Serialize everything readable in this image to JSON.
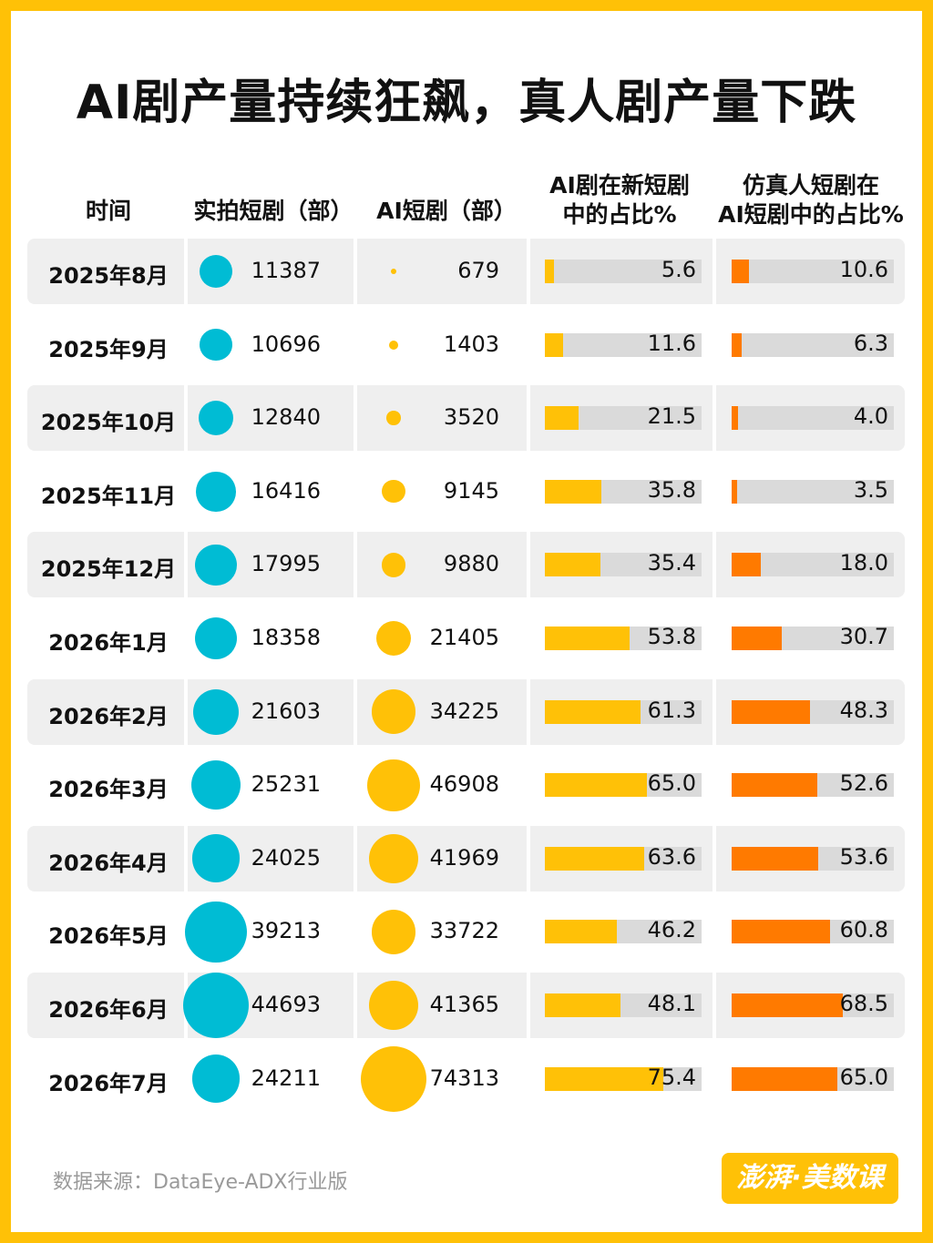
{
  "title": "AI剧产量持续狂飙，真人剧产量下跌",
  "headers": {
    "time": "时间",
    "real": "实拍短剧（部）",
    "ai": "AI短剧（部）",
    "ai_share_line1": "AI剧在新短剧",
    "ai_share_line2": "中的占比%",
    "sim_share_line1": "仿真人短剧在",
    "sim_share_line2": "AI短剧中的占比%"
  },
  "colors": {
    "real_dot": "#00BCD4",
    "ai_dot": "#FFC107",
    "ai_share_bar": "#FFC107",
    "sim_share_bar": "#FF7A00",
    "bar_track": "#DADADA",
    "row_alt": "#EFEFEF",
    "border": "#FFC107"
  },
  "chart_data": {
    "type": "table",
    "categories": [
      "2025年8月",
      "2025年9月",
      "2025年10月",
      "2025年11月",
      "2025年12月",
      "2026年1月",
      "2026年2月",
      "2026年3月",
      "2026年4月",
      "2026年5月",
      "2026年6月",
      "2026年7月"
    ],
    "series": [
      {
        "name": "实拍短剧（部）",
        "values": [
          11387,
          10696,
          12840,
          16416,
          17995,
          18358,
          21603,
          25231,
          24025,
          39213,
          44693,
          24211
        ]
      },
      {
        "name": "AI短剧（部）",
        "values": [
          679,
          1403,
          3520,
          9145,
          9880,
          21405,
          34225,
          46908,
          41969,
          33722,
          41365,
          74313
        ]
      },
      {
        "name": "AI剧在新短剧中的占比%",
        "values": [
          "5.6",
          "11.6",
          "21.5",
          "35.8",
          "35.4",
          "53.8",
          "61.3",
          "65.0",
          "63.6",
          "46.2",
          "48.1",
          "75.4"
        ]
      },
      {
        "name": "仿真人短剧在AI短剧中的占比%",
        "values": [
          "10.6",
          "6.3",
          "4.0",
          "3.5",
          "18.0",
          "30.7",
          "48.3",
          "52.6",
          "53.6",
          "60.8",
          "68.5",
          "65.0"
        ]
      }
    ],
    "bar_max": 100
  },
  "footer": {
    "source": "数据来源：DataEye-ADX行业版",
    "logo": "澎湃·美数课"
  }
}
